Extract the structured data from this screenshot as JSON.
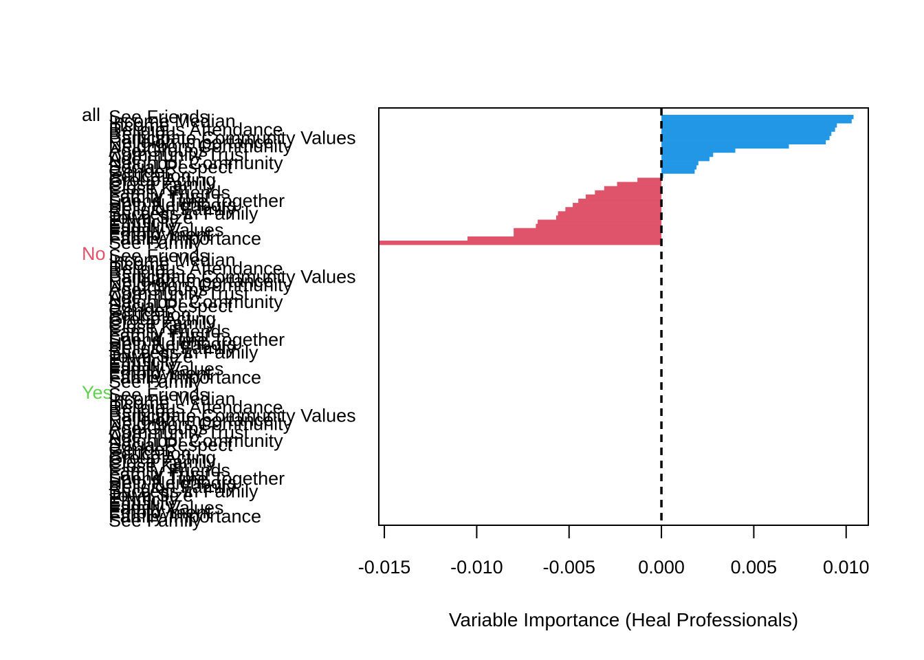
{
  "chart_data": {
    "type": "bar",
    "orientation": "horizontal",
    "xlabel": "Variable Importance (Heal Professionals)",
    "xlim": [
      -0.0153,
      0.0112
    ],
    "x_ticks": [
      "-0.015",
      "-0.010",
      "-0.005",
      "0.000",
      "0.005",
      "0.010"
    ],
    "x_tick_values": [
      -0.015,
      -0.01,
      -0.005,
      0.0,
      0.005,
      0.01
    ],
    "reference_line": 0.0,
    "colors": {
      "positive": "#2297E6",
      "negative": "#DF536B",
      "no": "#DF536B",
      "yes": "#61D04F",
      "all": "#000000"
    },
    "groups": [
      {
        "name": "all",
        "color": "#000000"
      },
      {
        "name": "No",
        "color": "#DF536B"
      },
      {
        "name": "Yes",
        "color": "#61D04F"
      }
    ],
    "variables": [
      "See Friends",
      "Income Median",
      "Income",
      "Religious Attendance",
      "Religion",
      "Participate Community Values",
      "Religion Importance",
      "Neighbors Community",
      "Age Groups",
      "Community Trust",
      "Age",
      "Neighbor Community",
      "Social Respect",
      "Gender",
      "Education",
      "Group Acting",
      "Close Family",
      "Close Kin",
      "Family Friends",
      "Family Trust",
      "Spend Time Together",
      "Help Neighbors",
      "Religion Family",
      "Success in Family",
      "Town Size",
      "Ethnicity",
      "Equality",
      "Family Values",
      "Employment",
      "Family Importance",
      "See Family"
    ],
    "series": [
      {
        "group": "all",
        "values": [
          0.0104,
          0.0103,
          0.0095,
          0.0094,
          0.0092,
          0.0091,
          0.0089,
          0.0069,
          0.004,
          0.0028,
          0.0026,
          0.002,
          0.0019,
          0.0018,
          0.0001,
          -0.0013,
          -0.0024,
          -0.0031,
          -0.0036,
          -0.0041,
          -0.0045,
          -0.0048,
          -0.0052,
          -0.0056,
          -0.0057,
          -0.0067,
          -0.0068,
          -0.008,
          -0.008,
          -0.0105,
          -0.0153
        ]
      },
      {
        "group": "No",
        "values": []
      },
      {
        "group": "Yes",
        "values": []
      }
    ]
  }
}
